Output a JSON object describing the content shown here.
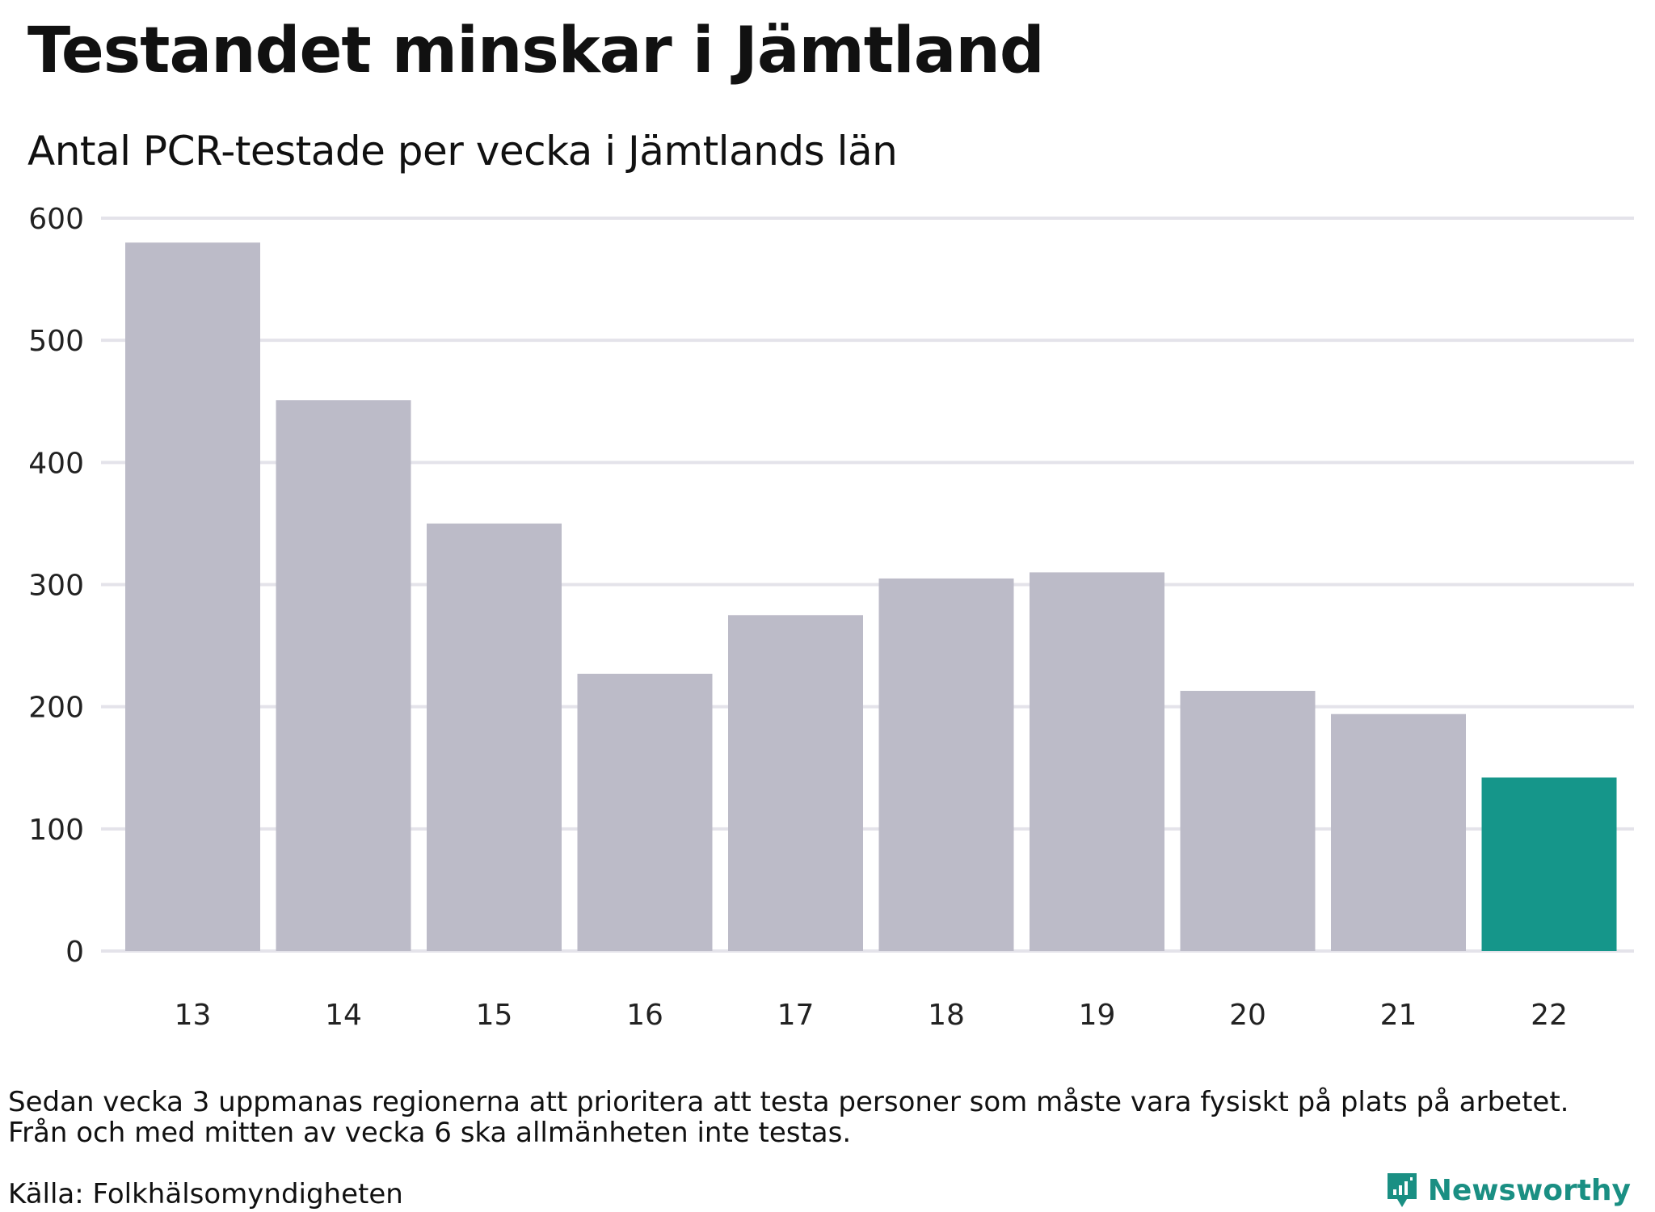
{
  "header": {
    "title": "Testandet minskar i Jämtland",
    "subtitle": "Antal PCR-testade per vecka i Jämtlands län"
  },
  "footer": {
    "note_line1": "Sedan vecka 3 uppmanas regionerna att prioritera att testa personer som måste vara fysiskt på plats på arbetet.",
    "note_line2": "Från och med mitten av vecka 6 ska allmänheten inte testas.",
    "source": "Källa: Folkhälsomyndigheten",
    "brand": "Newsworthy"
  },
  "colors": {
    "bar": "#bcbbc8",
    "highlight": "#15968a",
    "grid": "#e4e3ea",
    "brand": "#1a8f83"
  },
  "icons": {
    "brand_logo": "chart-speech-bubble-icon"
  },
  "chart_data": {
    "type": "bar",
    "title": "Testandet minskar i Jämtland",
    "subtitle": "Antal PCR-testade per vecka i Jämtlands län",
    "xlabel": "",
    "ylabel": "",
    "categories": [
      "13",
      "14",
      "15",
      "16",
      "17",
      "18",
      "19",
      "20",
      "21",
      "22"
    ],
    "values": [
      580,
      451,
      350,
      227,
      275,
      305,
      310,
      213,
      194,
      142
    ],
    "highlight_index": 9,
    "ylim": [
      0,
      600
    ],
    "yticks": [
      0,
      100,
      200,
      300,
      400,
      500,
      600
    ],
    "grid": true
  }
}
